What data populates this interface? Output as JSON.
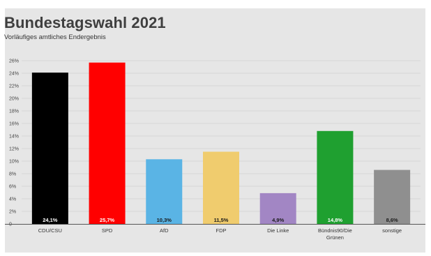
{
  "chart_data": {
    "type": "bar",
    "title": "Bundestagswahl 2021",
    "subtitle": "Vorläufiges amtliches Endergebnis",
    "categories": [
      "CDU/CSU",
      "SPD",
      "AfD",
      "FDP",
      "Die Linke",
      "Bündnis90/Die Grünen",
      "sonstige"
    ],
    "values": [
      24.1,
      25.7,
      10.3,
      11.5,
      4.9,
      14.8,
      8.6
    ],
    "value_labels": [
      "24,1%",
      "25,7%",
      "10,3%",
      "11,5%",
      "4,9%",
      "14,8%",
      "8,6%"
    ],
    "colors": [
      "#000000",
      "#ff0000",
      "#5ab4e5",
      "#f0cc6e",
      "#a286c4",
      "#1fa030",
      "#8f8f8f"
    ],
    "value_label_colors": [
      "#ffffff",
      "#ffffff",
      "#1a1a1a",
      "#1a1a1a",
      "#1a1a1a",
      "#ffffff",
      "#1a1a1a"
    ],
    "ylim": [
      0,
      26
    ],
    "yticks": [
      0,
      2,
      4,
      6,
      8,
      10,
      12,
      14,
      16,
      18,
      20,
      22,
      24,
      26
    ],
    "ytick_labels": [
      "0",
      "2%",
      "4%",
      "6%",
      "8%",
      "10%",
      "12%",
      "14%",
      "16%",
      "18%",
      "20%",
      "22%",
      "24%",
      "26%"
    ],
    "grid": true,
    "xlabel": "",
    "ylabel": ""
  }
}
